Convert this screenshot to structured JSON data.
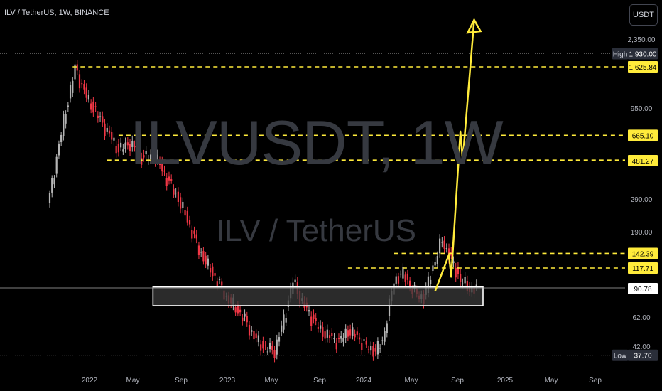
{
  "symbol_info": "ILV / TetherUS, 1W, BINANCE",
  "currency_button": "USDT",
  "watermark": {
    "ticker": "ILVUSDT, 1W",
    "name": "ILV / TetherUS"
  },
  "colors": {
    "up": "#b5b5b5",
    "down": "#f23645",
    "level": "#ffeb3b",
    "highlight": "#ffeb3b",
    "price": "#ffffff"
  },
  "chart_data": {
    "type": "candlestick",
    "scale": "log",
    "x_ticks": [
      "2022",
      "May",
      "Sep",
      "2023",
      "May",
      "Sep",
      "2024",
      "May",
      "Sep",
      "2025",
      "May",
      "Sep"
    ],
    "y_ticks": [
      "2,350.00",
      "950.00",
      "290.00",
      "190.00",
      "62.00",
      "42.00"
    ],
    "horizontal_levels": [
      1625.84,
      665.1,
      481.27,
      142.39,
      117.71
    ],
    "level_labels": [
      "1,625.84",
      "665.10",
      "481.27",
      "142.39",
      "117.71"
    ],
    "current_price": "90.78",
    "high_label": "High",
    "high_value": "1,930.00",
    "low_label": "Low",
    "low_value": "37.70",
    "support_zone": {
      "low": 72,
      "high": 92
    },
    "projection_path": [
      [
        87,
        0
      ],
      [
        140,
        6
      ],
      [
        105,
        7
      ],
      [
        700,
        11
      ],
      [
        480,
        12
      ],
      [
        3000,
        17
      ]
    ],
    "price_path": [
      [
        300,
        0
      ],
      [
        500,
        3
      ],
      [
        800,
        6
      ],
      [
        1600,
        11
      ],
      [
        1100,
        16
      ],
      [
        900,
        20
      ],
      [
        700,
        25
      ],
      [
        550,
        30
      ],
      [
        600,
        35
      ],
      [
        500,
        40
      ],
      [
        500,
        46
      ],
      [
        380,
        51
      ],
      [
        290,
        56
      ],
      [
        220,
        60
      ],
      [
        150,
        65
      ],
      [
        120,
        69
      ],
      [
        100,
        73
      ],
      [
        80,
        77
      ],
      [
        70,
        81
      ],
      [
        60,
        85
      ],
      [
        48,
        89
      ],
      [
        42,
        93
      ],
      [
        40,
        98
      ],
      [
        60,
        102
      ],
      [
        100,
        106
      ],
      [
        75,
        110
      ],
      [
        62,
        114
      ],
      [
        52,
        118
      ],
      [
        48,
        122
      ],
      [
        45,
        126
      ],
      [
        52,
        130
      ],
      [
        48,
        134
      ],
      [
        42,
        138
      ],
      [
        40,
        142
      ],
      [
        45,
        145
      ],
      [
        100,
        150
      ],
      [
        110,
        154
      ],
      [
        85,
        159
      ],
      [
        80,
        163
      ],
      [
        120,
        167
      ],
      [
        170,
        171
      ],
      [
        130,
        175
      ],
      [
        100,
        179
      ],
      [
        90,
        183
      ],
      [
        88,
        186
      ]
    ]
  }
}
